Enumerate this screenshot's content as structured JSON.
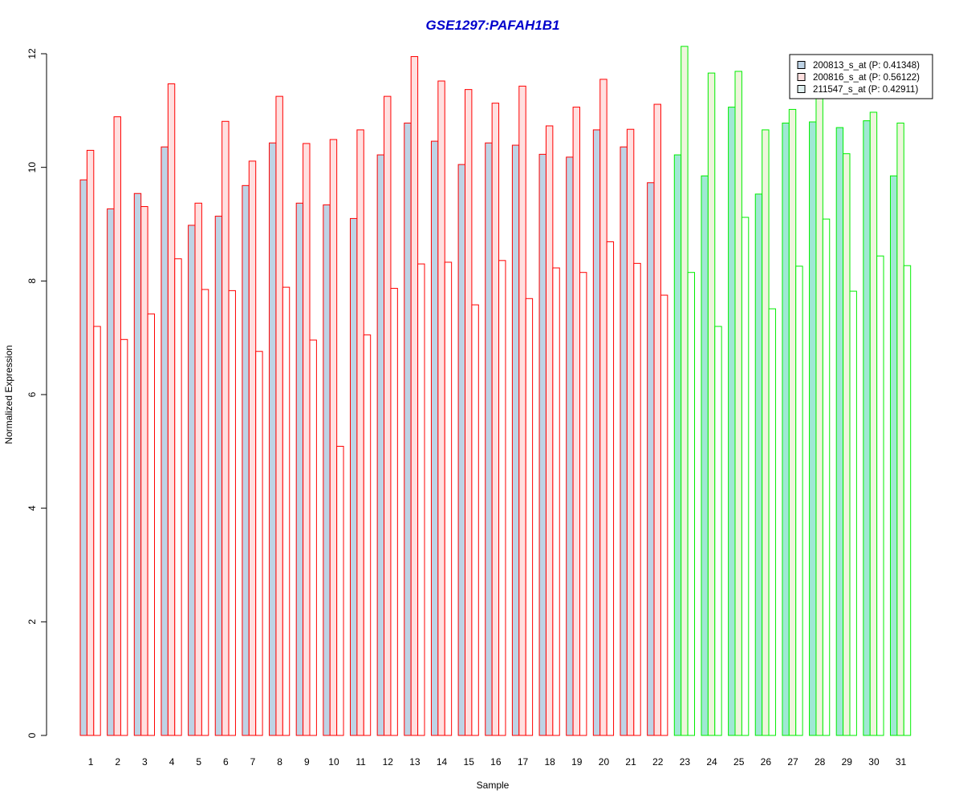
{
  "chart_data": {
    "type": "bar",
    "title": "GSE1297:PAFAH1B1",
    "xlabel": "Sample",
    "ylabel": "Normalized Expression",
    "ylim": [
      0,
      12
    ],
    "yticks": [
      0,
      2,
      4,
      6,
      8,
      10,
      12
    ],
    "legend_position": "top-right",
    "categories": [
      "1",
      "2",
      "3",
      "4",
      "5",
      "6",
      "7",
      "8",
      "9",
      "10",
      "11",
      "12",
      "13",
      "14",
      "15",
      "16",
      "17",
      "18",
      "19",
      "20",
      "21",
      "22",
      "23",
      "24",
      "25",
      "26",
      "27",
      "28",
      "29",
      "30",
      "31"
    ],
    "group_border_colors": [
      "#ff0000",
      "#ff0000",
      "#ff0000",
      "#ff0000",
      "#ff0000",
      "#ff0000",
      "#ff0000",
      "#ff0000",
      "#ff0000",
      "#ff0000",
      "#ff0000",
      "#ff0000",
      "#ff0000",
      "#ff0000",
      "#ff0000",
      "#ff0000",
      "#ff0000",
      "#ff0000",
      "#ff0000",
      "#ff0000",
      "#ff0000",
      "#ff0000",
      "#00ee00",
      "#00ee00",
      "#00ee00",
      "#00ee00",
      "#00ee00",
      "#00ee00",
      "#00ee00",
      "#00ee00",
      "#00ee00"
    ],
    "series": [
      {
        "name": "200813_s_at (P: 0.41348)",
        "fill_red_group": "#bed3e5",
        "fill_green_group": "#a0e8d4",
        "values": [
          9.78,
          9.27,
          9.54,
          10.36,
          8.98,
          9.14,
          9.68,
          10.43,
          9.37,
          9.34,
          9.1,
          10.22,
          10.78,
          10.46,
          10.05,
          10.43,
          10.39,
          10.23,
          10.18,
          10.66,
          10.36,
          9.73,
          10.22,
          9.85,
          11.06,
          9.53,
          10.78,
          10.8,
          10.7,
          10.82,
          9.85
        ]
      },
      {
        "name": "200816_s_at (P: 0.56122)",
        "fill_red_group": "#ffe0e0",
        "fill_green_group": "#eef5dc",
        "values": [
          10.3,
          10.89,
          9.31,
          11.47,
          9.37,
          10.81,
          10.11,
          11.25,
          10.42,
          10.49,
          10.66,
          11.25,
          11.95,
          11.52,
          11.37,
          11.13,
          11.43,
          10.73,
          11.06,
          11.55,
          10.67,
          11.11,
          12.13,
          11.66,
          11.69,
          10.66,
          11.02,
          11.3,
          10.24,
          10.97,
          10.78
        ]
      },
      {
        "name": "211547_s_at (P: 0.42911)",
        "fill_red_group": "#ffffff",
        "fill_green_group": "#ffffff",
        "values": [
          7.2,
          6.97,
          7.42,
          8.39,
          7.85,
          7.83,
          6.76,
          7.89,
          6.96,
          5.09,
          7.05,
          7.87,
          8.3,
          8.33,
          7.58,
          8.36,
          7.69,
          8.23,
          8.15,
          8.69,
          8.31,
          7.75,
          8.15,
          7.2,
          9.12,
          7.51,
          8.26,
          9.09,
          7.82,
          8.44,
          8.27
        ]
      }
    ],
    "legend_swatches": [
      "#bed3e5",
      "#ffe0e0",
      "#e0f0f0"
    ]
  }
}
